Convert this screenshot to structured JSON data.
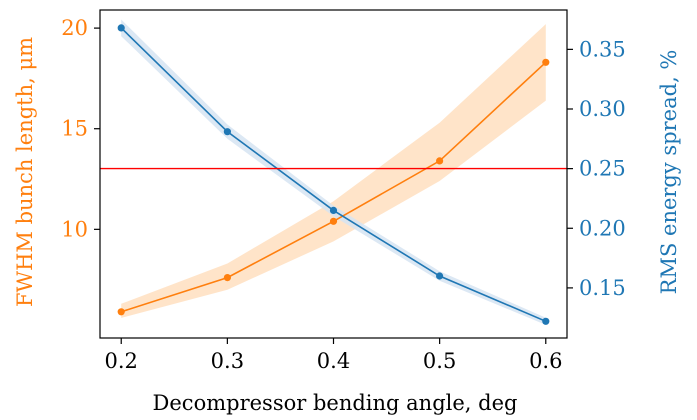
{
  "chart_data": {
    "type": "line",
    "xlabel": "Decompressor bending angle, deg",
    "x_ticks": [
      "0.2",
      "0.3",
      "0.4",
      "0.5",
      "0.6"
    ],
    "x": [
      0.2,
      0.3,
      0.4,
      0.5,
      0.6
    ],
    "xlim": [
      0.18,
      0.62
    ],
    "y_left": {
      "label": "FWHM bunch length, μm",
      "ticks": [
        "10",
        "15",
        "20"
      ],
      "ylim": [
        4.6,
        20.9
      ],
      "color": "#ff7f0e"
    },
    "y_right": {
      "label": "RMS energy spread, %",
      "ticks": [
        "0.15",
        "0.20",
        "0.25",
        "0.30",
        "0.35"
      ],
      "ylim": [
        0.108,
        0.383
      ],
      "color": "#1f77b4"
    },
    "series": [
      {
        "axis": "left",
        "color": "#ff7f0e",
        "band_color": "#ffdfc0",
        "values": [
          5.9,
          7.6,
          10.4,
          13.4,
          18.3
        ],
        "band_upper": [
          6.3,
          8.3,
          11.4,
          15.3,
          20.2
        ],
        "band_lower": [
          5.6,
          7.0,
          9.4,
          12.4,
          16.4
        ]
      },
      {
        "axis": "right",
        "color": "#1f77b4",
        "band_color": "#d6e4f2",
        "values": [
          0.368,
          0.281,
          0.215,
          0.16,
          0.122
        ],
        "band_upper": [
          0.375,
          0.287,
          0.219,
          0.164,
          0.125
        ],
        "band_lower": [
          0.361,
          0.275,
          0.21,
          0.156,
          0.119
        ]
      }
    ],
    "hline": {
      "axis": "right",
      "value": 0.25,
      "color": "#ff0000"
    }
  }
}
